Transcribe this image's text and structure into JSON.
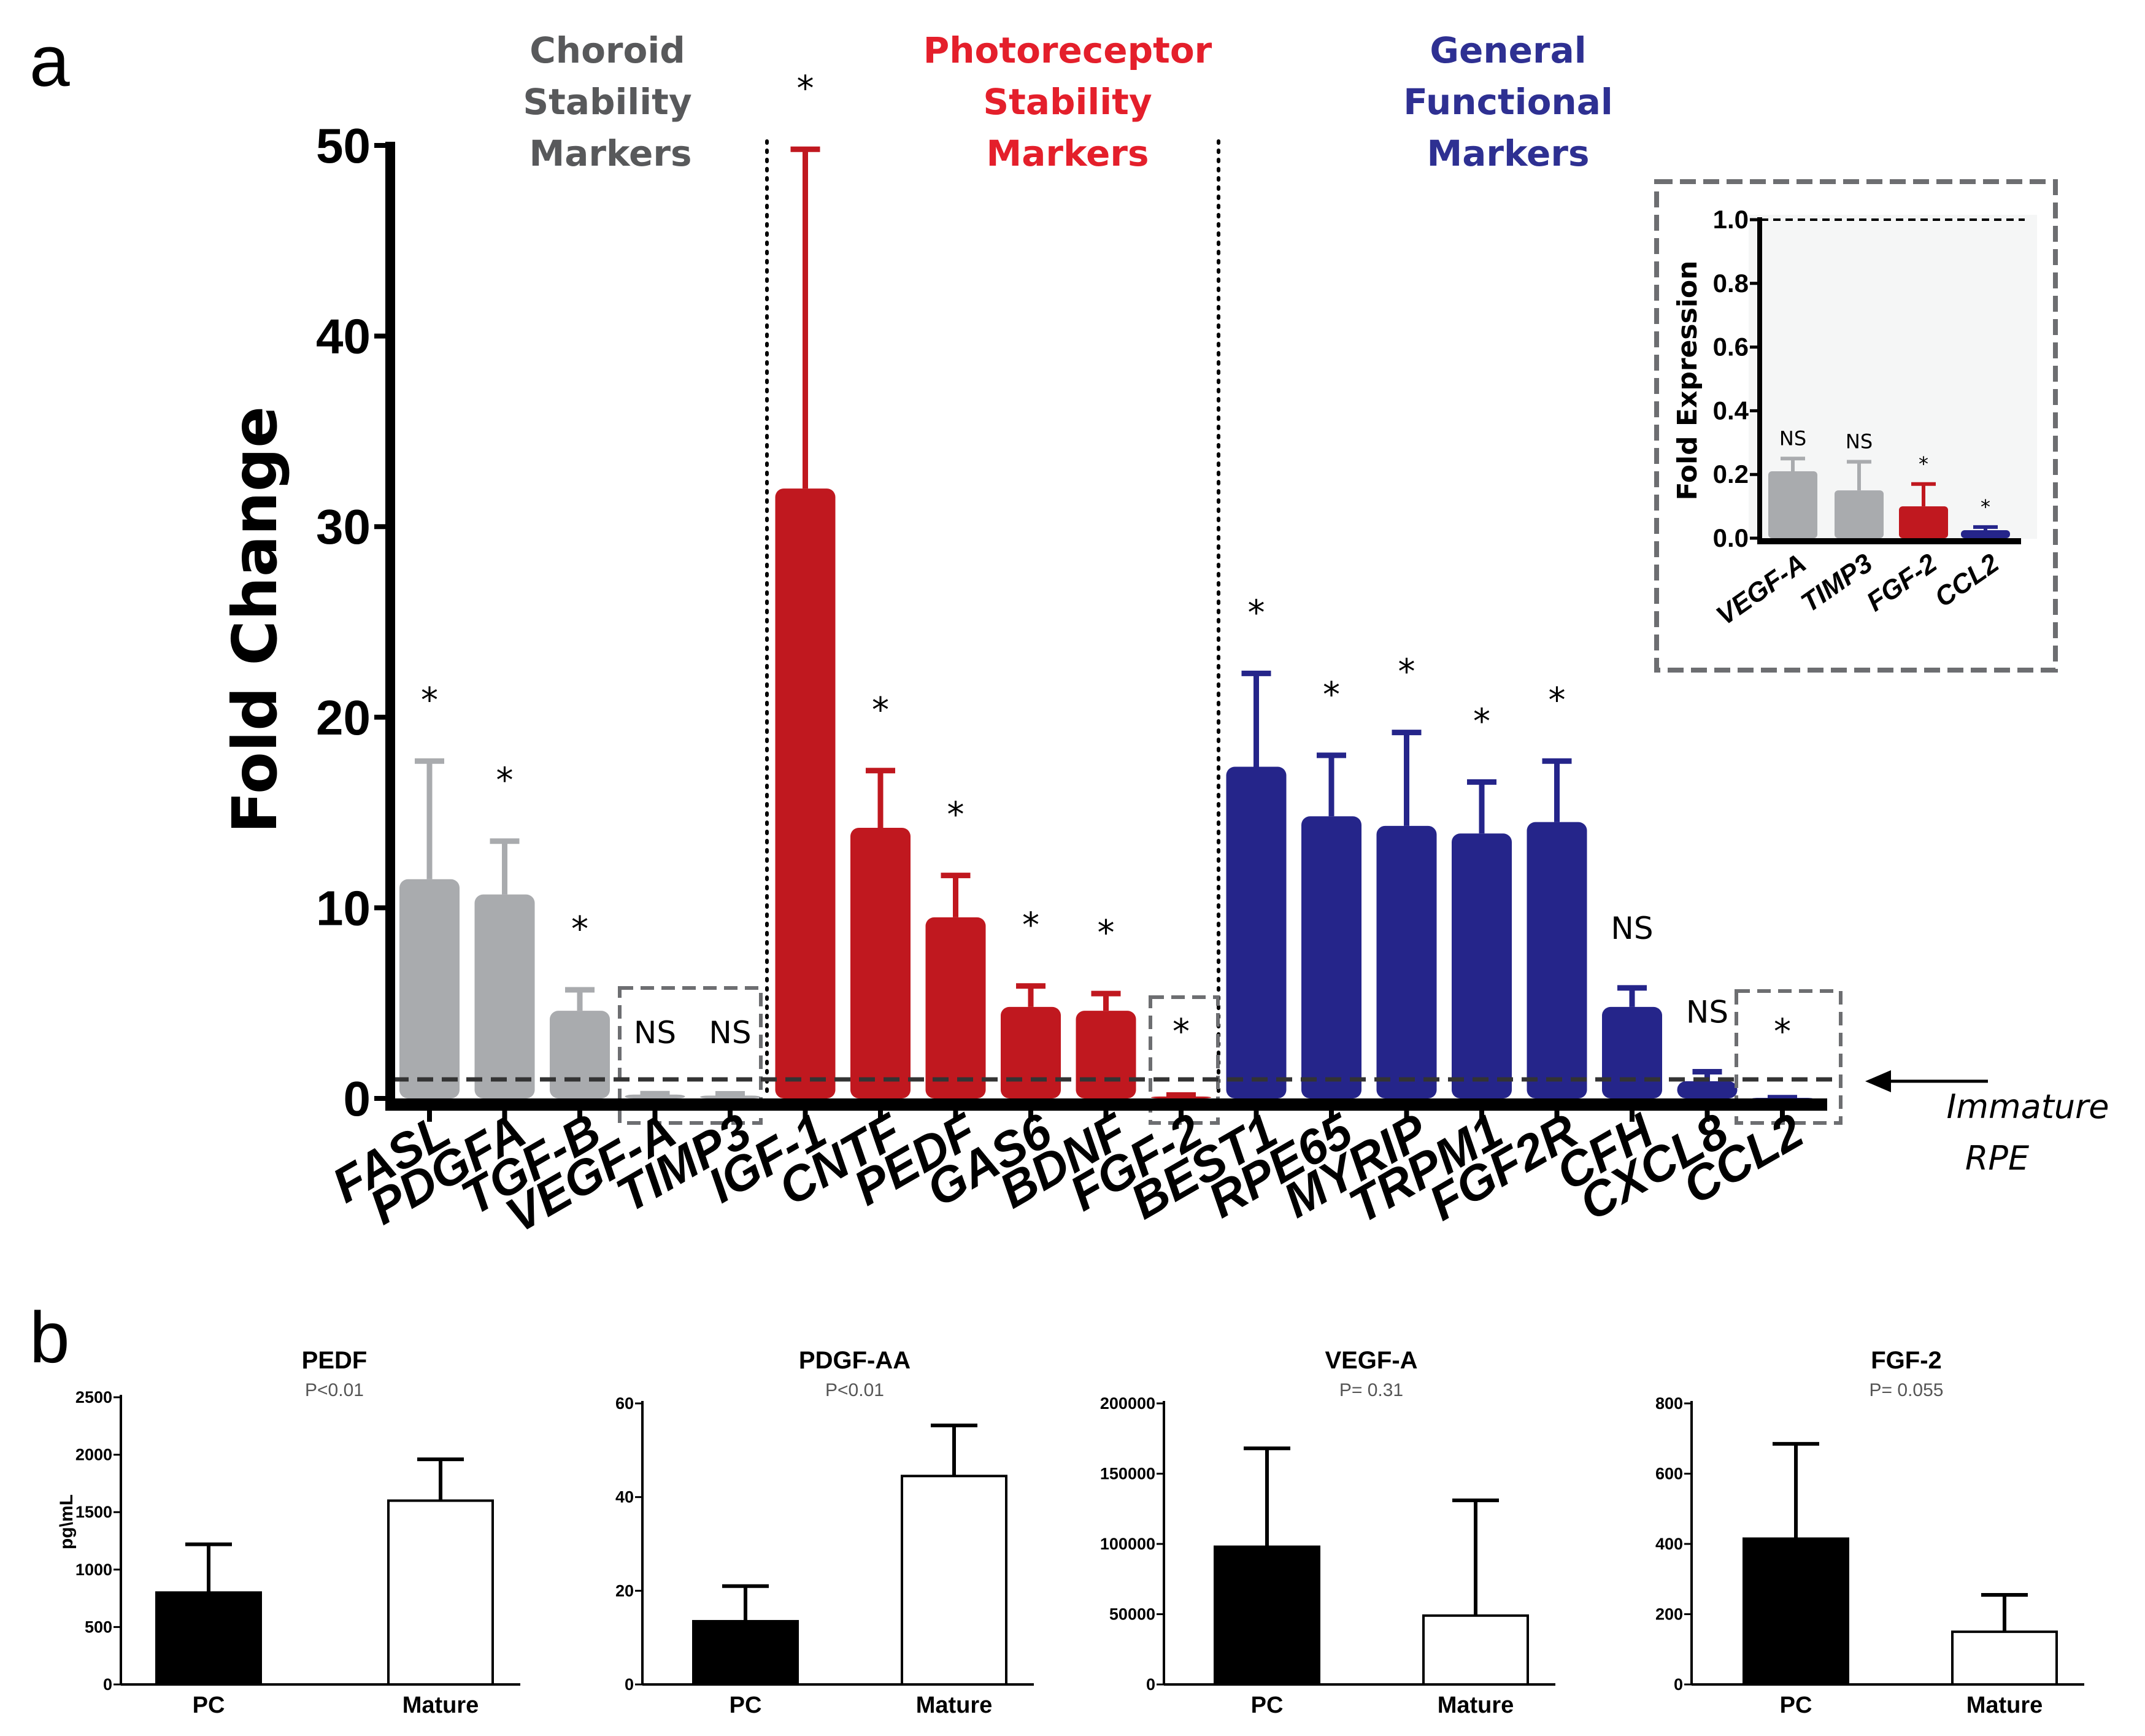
{
  "figure": {
    "panel_a_letter": "a",
    "panel_b_letter": "b"
  },
  "colors": {
    "gray": "#a9abae",
    "red": "#c0181f",
    "blue": "#25258a",
    "black": "#000000",
    "gray_text": "#58595b",
    "red_text": "#e41f2b",
    "blue_text": "#2e3092"
  },
  "groups": [
    {
      "lines": [
        "Choroid",
        "Stability",
        "Markers"
      ],
      "color": "#58595b"
    },
    {
      "lines": [
        "Photoreceptor",
        "Stability",
        "Markers"
      ],
      "color": "#e41f2b"
    },
    {
      "lines": [
        "General",
        "Functional",
        "Markers"
      ],
      "color": "#2e3092"
    }
  ],
  "reference_label": [
    "Immature",
    "RPE"
  ],
  "chart_data": [
    {
      "id": "main",
      "type": "bar",
      "ylabel": "Fold Change",
      "ylim": [
        0,
        50
      ],
      "yticks": [
        0,
        10,
        20,
        30,
        40,
        50
      ],
      "reference_line": 1,
      "categories": [
        "FASL",
        "PDGFA",
        "TGF-B",
        "VEGF-A",
        "TIMP3",
        "IGF-1",
        "CNTF",
        "PEDF",
        "GAS6",
        "BDNF",
        "FGF-2",
        "BEST1",
        "RPE65",
        "MYRIP",
        "TRPM1",
        "FGF2R",
        "CFH",
        "CXCL8",
        "CCL2"
      ],
      "values": [
        11.5,
        10.7,
        4.6,
        0.2,
        0.15,
        32.0,
        14.2,
        9.5,
        4.8,
        4.6,
        0.1,
        17.4,
        14.8,
        14.3,
        13.9,
        14.5,
        4.8,
        0.9,
        0.03
      ],
      "errors": [
        6.2,
        2.8,
        1.1,
        0.05,
        0.09,
        17.8,
        3.0,
        2.2,
        1.1,
        0.9,
        0.08,
        4.9,
        3.2,
        4.9,
        2.7,
        3.2,
        1.0,
        0.5,
        0.01
      ],
      "groups": [
        "gray",
        "gray",
        "gray",
        "gray",
        "gray",
        "red",
        "red",
        "red",
        "red",
        "red",
        "red",
        "blue",
        "blue",
        "blue",
        "blue",
        "blue",
        "blue",
        "blue",
        "blue"
      ],
      "significance": [
        "*",
        "*",
        "*",
        "NS",
        "NS",
        "*",
        "*",
        "*",
        "*",
        "*",
        "*",
        "*",
        "*",
        "*",
        "*",
        "*",
        "NS",
        "NS",
        "*"
      ]
    },
    {
      "id": "inset",
      "type": "bar",
      "ylabel": "Fold Expression",
      "ylim": [
        0,
        1.0
      ],
      "yticks": [
        "0.0",
        "0.2",
        "0.4",
        "0.6",
        "0.8",
        "1.0"
      ],
      "reference_line": 1.0,
      "categories": [
        "VEGF-A",
        "TIMP3",
        "FGF-2",
        "CCL2"
      ],
      "values": [
        0.21,
        0.15,
        0.1,
        0.025
      ],
      "errors": [
        0.04,
        0.09,
        0.07,
        0.01
      ],
      "groups": [
        "gray",
        "gray",
        "red",
        "blue"
      ],
      "significance": [
        "NS",
        "NS",
        "*",
        "*"
      ]
    },
    {
      "id": "pedf",
      "type": "bar",
      "title": "PEDF",
      "subtitle": "P<0.01",
      "ylabel": "pg\\mL",
      "ylim": [
        0,
        2500
      ],
      "yticks": [
        "0",
        "500",
        "1000",
        "1500",
        "2000",
        "2500"
      ],
      "categories": [
        "PC",
        "Mature"
      ],
      "values": [
        800,
        1600
      ],
      "errors": [
        420,
        360
      ]
    },
    {
      "id": "pdgfaa",
      "type": "bar",
      "title": "PDGF-AA",
      "subtitle": "P<0.01",
      "ylabel": "",
      "ylim": [
        0,
        60
      ],
      "yticks": [
        "0",
        "20",
        "40",
        "60"
      ],
      "categories": [
        "PC",
        "Mature"
      ],
      "values": [
        13.5,
        44.5
      ],
      "errors": [
        7.5,
        10.8
      ]
    },
    {
      "id": "vegfa",
      "type": "bar",
      "title": "VEGF-A",
      "subtitle": "P= 0.31",
      "ylabel": "",
      "ylim": [
        0,
        200000
      ],
      "yticks": [
        "0",
        "50000",
        "100000",
        "150000",
        "200000"
      ],
      "categories": [
        "PC",
        "Mature"
      ],
      "values": [
        98000,
        49000
      ],
      "errors": [
        70000,
        82000
      ]
    },
    {
      "id": "fgf2",
      "type": "bar",
      "title": "FGF-2",
      "subtitle": "P= 0.055",
      "ylabel": "",
      "ylim": [
        0,
        800
      ],
      "yticks": [
        "0",
        "200",
        "400",
        "600",
        "800"
      ],
      "categories": [
        "PC",
        "Mature"
      ],
      "values": [
        415,
        150
      ],
      "errors": [
        270,
        105
      ]
    }
  ]
}
